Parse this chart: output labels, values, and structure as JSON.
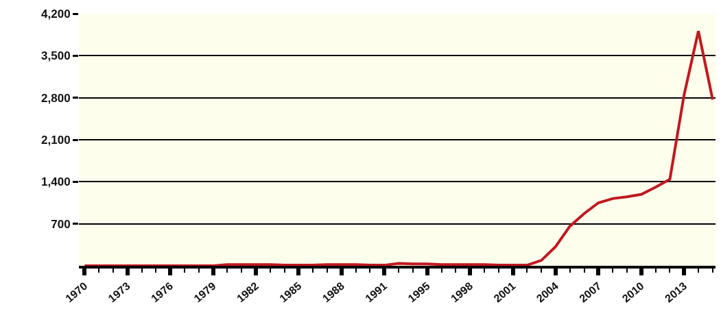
{
  "chart_data": {
    "type": "line",
    "categories": [
      "1970",
      null,
      null,
      "1973",
      null,
      null,
      "1976",
      null,
      null,
      "1979",
      null,
      null,
      "1982",
      null,
      null,
      "1985",
      null,
      null,
      "1988",
      null,
      null,
      "1991",
      null,
      null,
      "1995",
      null,
      null,
      "1998",
      null,
      null,
      "2001",
      null,
      null,
      "2004",
      null,
      null,
      "2007",
      null,
      null,
      "2010",
      null,
      null,
      "2013",
      null,
      null
    ],
    "series": [
      {
        "color": "#c0191f",
        "values": [
          0,
          0,
          0,
          0,
          0,
          0,
          0,
          0,
          0,
          0,
          20,
          20,
          20,
          20,
          10,
          10,
          10,
          20,
          20,
          20,
          10,
          10,
          40,
          30,
          30,
          20,
          20,
          20,
          20,
          10,
          10,
          10,
          90,
          320,
          660,
          870,
          1050,
          1120,
          1150,
          1190,
          1310,
          1440,
          2850,
          3910,
          2770
        ]
      }
    ],
    "ylim": [
      0,
      4200
    ],
    "yticks": [
      {
        "value": 700,
        "label": "700"
      },
      {
        "value": 1400,
        "label": "1,400"
      },
      {
        "value": 2100,
        "label": "2,100"
      },
      {
        "value": 2800,
        "label": "2,800"
      },
      {
        "value": 3500,
        "label": "3,500"
      },
      {
        "value": 4200,
        "label": "4,200"
      }
    ],
    "grid": "y",
    "marker": "none",
    "line_style": "solid"
  }
}
